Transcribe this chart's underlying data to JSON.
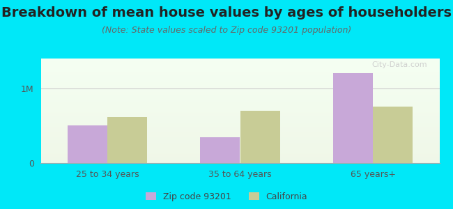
{
  "title": "Breakdown of mean house values by ages of householders",
  "subtitle": "(Note: State values scaled to Zip code 93201 population)",
  "categories": [
    "25 to 34 years",
    "35 to 64 years",
    "65 years+"
  ],
  "zip_values": [
    500000,
    350000,
    1200000
  ],
  "ca_values": [
    620000,
    700000,
    760000
  ],
  "zip_color": "#c8a8d8",
  "ca_color": "#c8cc96",
  "yticks": [
    0,
    1000000
  ],
  "ytick_labels": [
    "0",
    "1M"
  ],
  "ylim": [
    0,
    1400000
  ],
  "outer_bg": "#00e8f8",
  "plot_bg_top": "#e8f5e2",
  "plot_bg_bottom": "#f5fdf0",
  "legend_zip_label": "Zip code 93201",
  "legend_ca_label": "California",
  "watermark": "City-Data.com",
  "bar_width": 0.3,
  "title_fontsize": 14,
  "subtitle_fontsize": 9,
  "axis_fontsize": 9,
  "tick_fontsize": 9,
  "legend_fontsize": 9
}
